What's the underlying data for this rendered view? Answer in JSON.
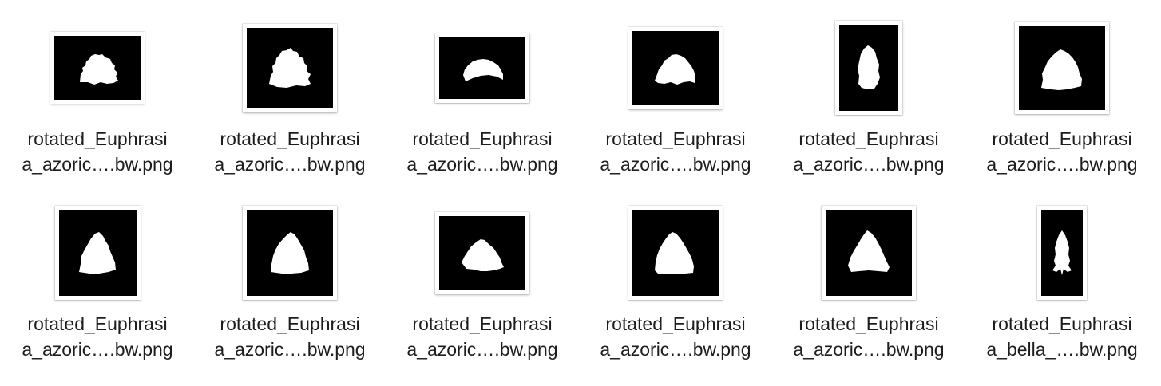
{
  "files": [
    {
      "line1": "rotated_Euphrasi",
      "line2": "a_azoric….bw.png",
      "icon": "leaf-silhouette-thumbnail"
    },
    {
      "line1": "rotated_Euphrasi",
      "line2": "a_azoric….bw.png",
      "icon": "leaf-silhouette-thumbnail"
    },
    {
      "line1": "rotated_Euphrasi",
      "line2": "a_azoric….bw.png",
      "icon": "leaf-silhouette-thumbnail"
    },
    {
      "line1": "rotated_Euphrasi",
      "line2": "a_azoric….bw.png",
      "icon": "leaf-silhouette-thumbnail"
    },
    {
      "line1": "rotated_Euphrasi",
      "line2": "a_azoric….bw.png",
      "icon": "leaf-silhouette-thumbnail"
    },
    {
      "line1": "rotated_Euphrasi",
      "line2": "a_azoric….bw.png",
      "icon": "leaf-silhouette-thumbnail"
    },
    {
      "line1": "rotated_Euphrasi",
      "line2": "a_azoric….bw.png",
      "icon": "leaf-silhouette-thumbnail"
    },
    {
      "line1": "rotated_Euphrasi",
      "line2": "a_azoric….bw.png",
      "icon": "leaf-silhouette-thumbnail"
    },
    {
      "line1": "rotated_Euphrasi",
      "line2": "a_azoric….bw.png",
      "icon": "leaf-silhouette-thumbnail"
    },
    {
      "line1": "rotated_Euphrasi",
      "line2": "a_azoric….bw.png",
      "icon": "leaf-silhouette-thumbnail"
    },
    {
      "line1": "rotated_Euphrasi",
      "line2": "a_azoric….bw.png",
      "icon": "leaf-silhouette-thumbnail"
    },
    {
      "line1": "rotated_Euphrasi",
      "line2": "a_bella_….bw.png",
      "icon": "leaf-silhouette-thumbnail"
    }
  ],
  "colors": {
    "thumbnail_background": "#000000",
    "leaf": "#ffffff",
    "label_text": "#1d1d1f"
  }
}
